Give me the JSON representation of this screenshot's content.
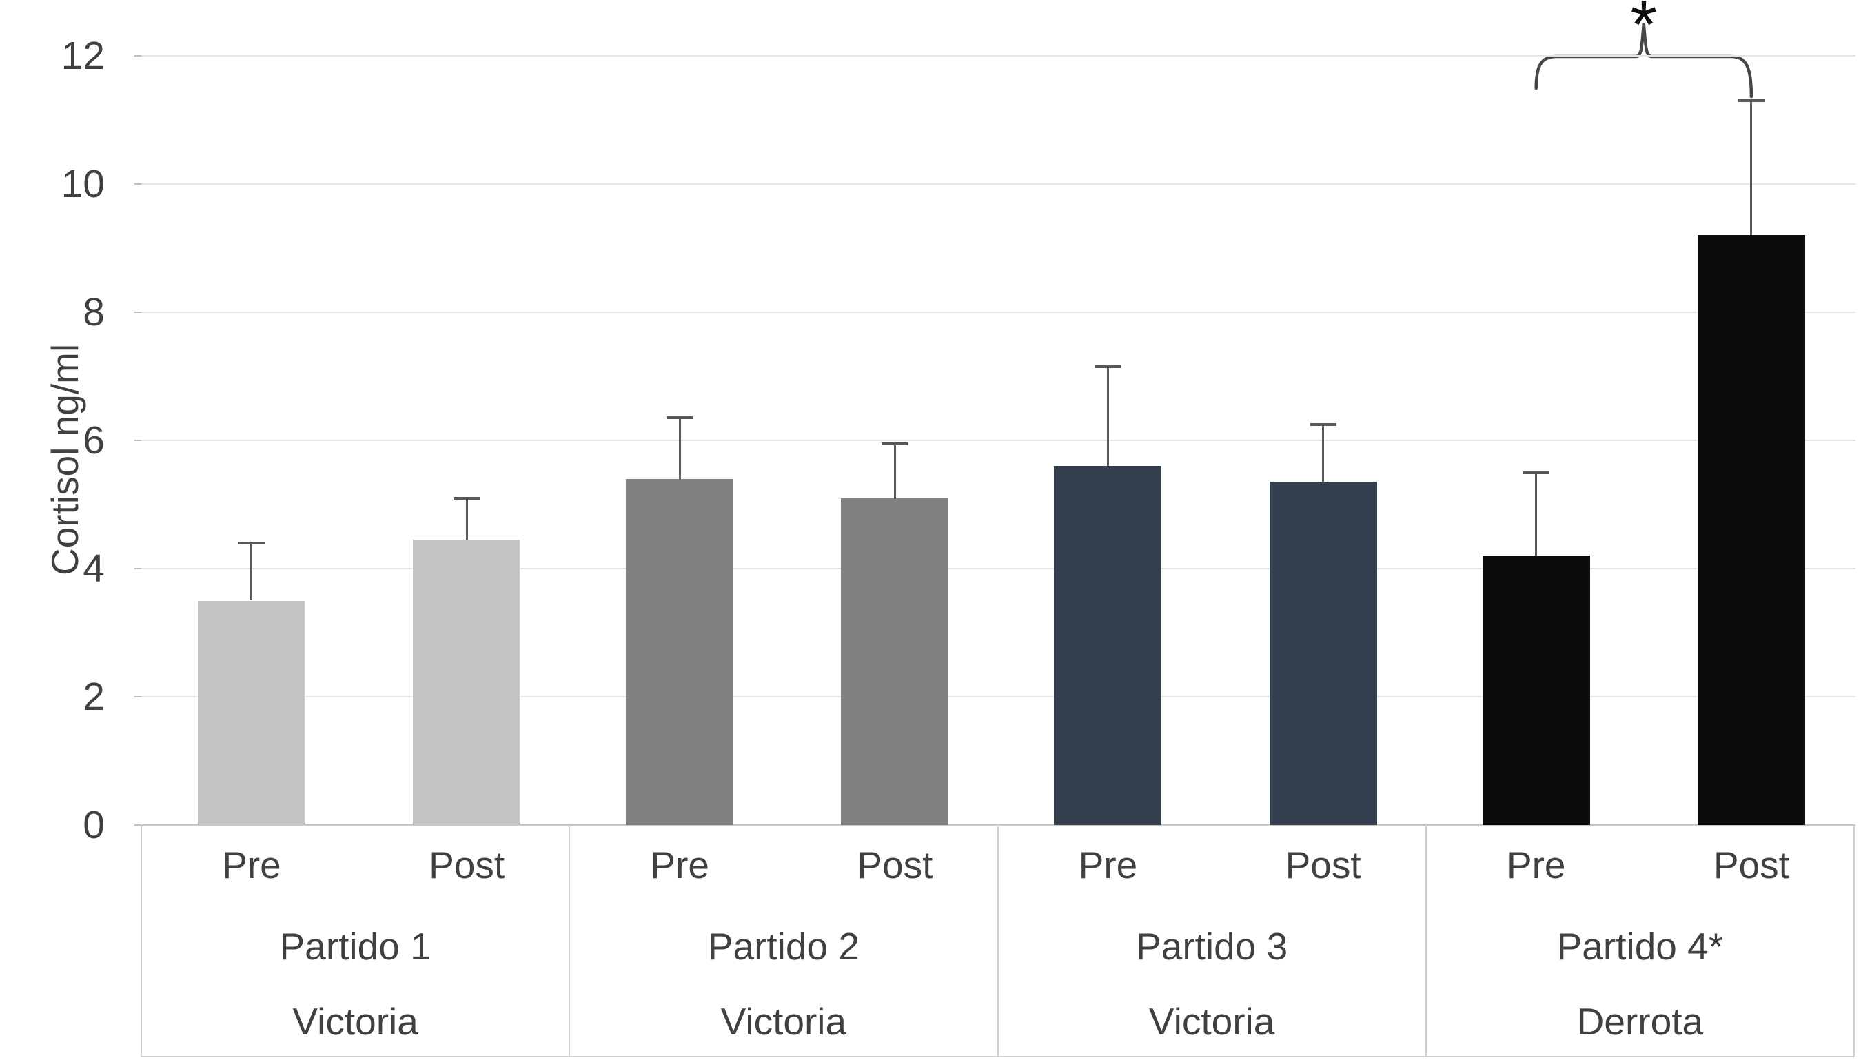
{
  "chart_data": {
    "type": "bar",
    "title": "",
    "xlabel": "",
    "ylabel": "Cortisol ng/ml",
    "ylim": [
      0,
      12
    ],
    "yticks": [
      0,
      2,
      4,
      6,
      8,
      10,
      12
    ],
    "grid": true,
    "legend": "none",
    "condition_labels": [
      "Pre",
      "Post"
    ],
    "groups": [
      {
        "label": "Partido 1",
        "outcome": "Victoria",
        "bar_color": "#c2c3c3",
        "bars": [
          {
            "label": "Pre",
            "value": 3.5,
            "error_up": 0.9,
            "whisker_top": 4.4
          },
          {
            "label": "Post",
            "value": 4.45,
            "error_up": 0.65,
            "whisker_top": 5.1
          }
        ]
      },
      {
        "label": "Partido 2",
        "outcome": "Victoria",
        "bar_color": "#7f8082",
        "bars": [
          {
            "label": "Pre",
            "value": 5.4,
            "error_up": 0.95,
            "whisker_top": 6.35
          },
          {
            "label": "Post",
            "value": 5.1,
            "error_up": 0.85,
            "whisker_top": 5.95
          }
        ]
      },
      {
        "label": "Partido 3",
        "outcome": "Victoria",
        "bar_color": "#333e4e",
        "bars": [
          {
            "label": "Pre",
            "value": 5.6,
            "error_up": 1.55,
            "whisker_top": 7.15
          },
          {
            "label": "Post",
            "value": 5.35,
            "error_up": 0.9,
            "whisker_top": 6.25
          }
        ]
      },
      {
        "label": "Partido 4*",
        "outcome": "Derrota",
        "bar_color": "#0b0b0d",
        "bars": [
          {
            "label": "Pre",
            "value": 4.2,
            "error_up": 1.3,
            "whisker_top": 5.5
          },
          {
            "label": "Post",
            "value": 9.2,
            "error_up": 2.1,
            "whisker_top": 11.3
          }
        ]
      }
    ],
    "significance": {
      "symbol": "*",
      "group": "Partido 4*",
      "between": [
        "Pre",
        "Post"
      ]
    },
    "colors": {
      "gridline": "#e5e5e5",
      "axis": "#c6c6c6",
      "error_bar": "#585858",
      "bracket": "#474747",
      "text": "#404040"
    }
  }
}
